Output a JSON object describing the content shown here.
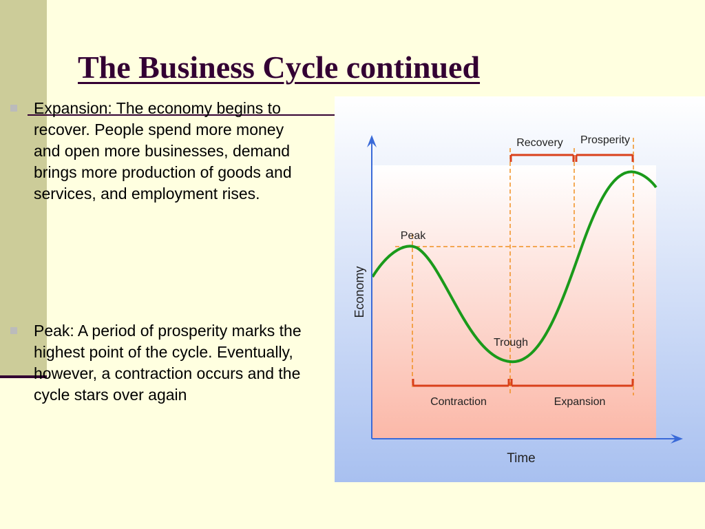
{
  "slide": {
    "title": "The Business Cycle continued",
    "bullets": [
      {
        "text": "Expansion: The economy begins to recover.  People spend more money and open more businesses, demand brings more production of goods and services, and employment rises."
      },
      {
        "text": "Peak: A period of prosperity marks the highest point of the cycle.  Eventually, however, a contraction occurs and the cycle stars over again"
      }
    ]
  },
  "diagram": {
    "y_axis_label": "Economy",
    "x_axis_label": "Time",
    "point_labels": {
      "peak": "Peak",
      "trough": "Trough"
    },
    "phase_labels": {
      "recovery": "Recovery",
      "prosperity": "Prosperity",
      "contraction": "Contraction",
      "expansion": "Expansion"
    },
    "colors": {
      "curve": "#1a9a1a",
      "phase_bars": "#d9401a",
      "guides": "#f09020",
      "axes": "#3a6ad8",
      "fill_top": "#ffffff",
      "fill_bottom": "#fbb8a8",
      "panel_top": "#ffffff",
      "panel_bottom": "#a8c0f0"
    }
  },
  "colors": {
    "background": "#ffffe0",
    "accent_bar": "#cccc99",
    "title": "#330033"
  }
}
